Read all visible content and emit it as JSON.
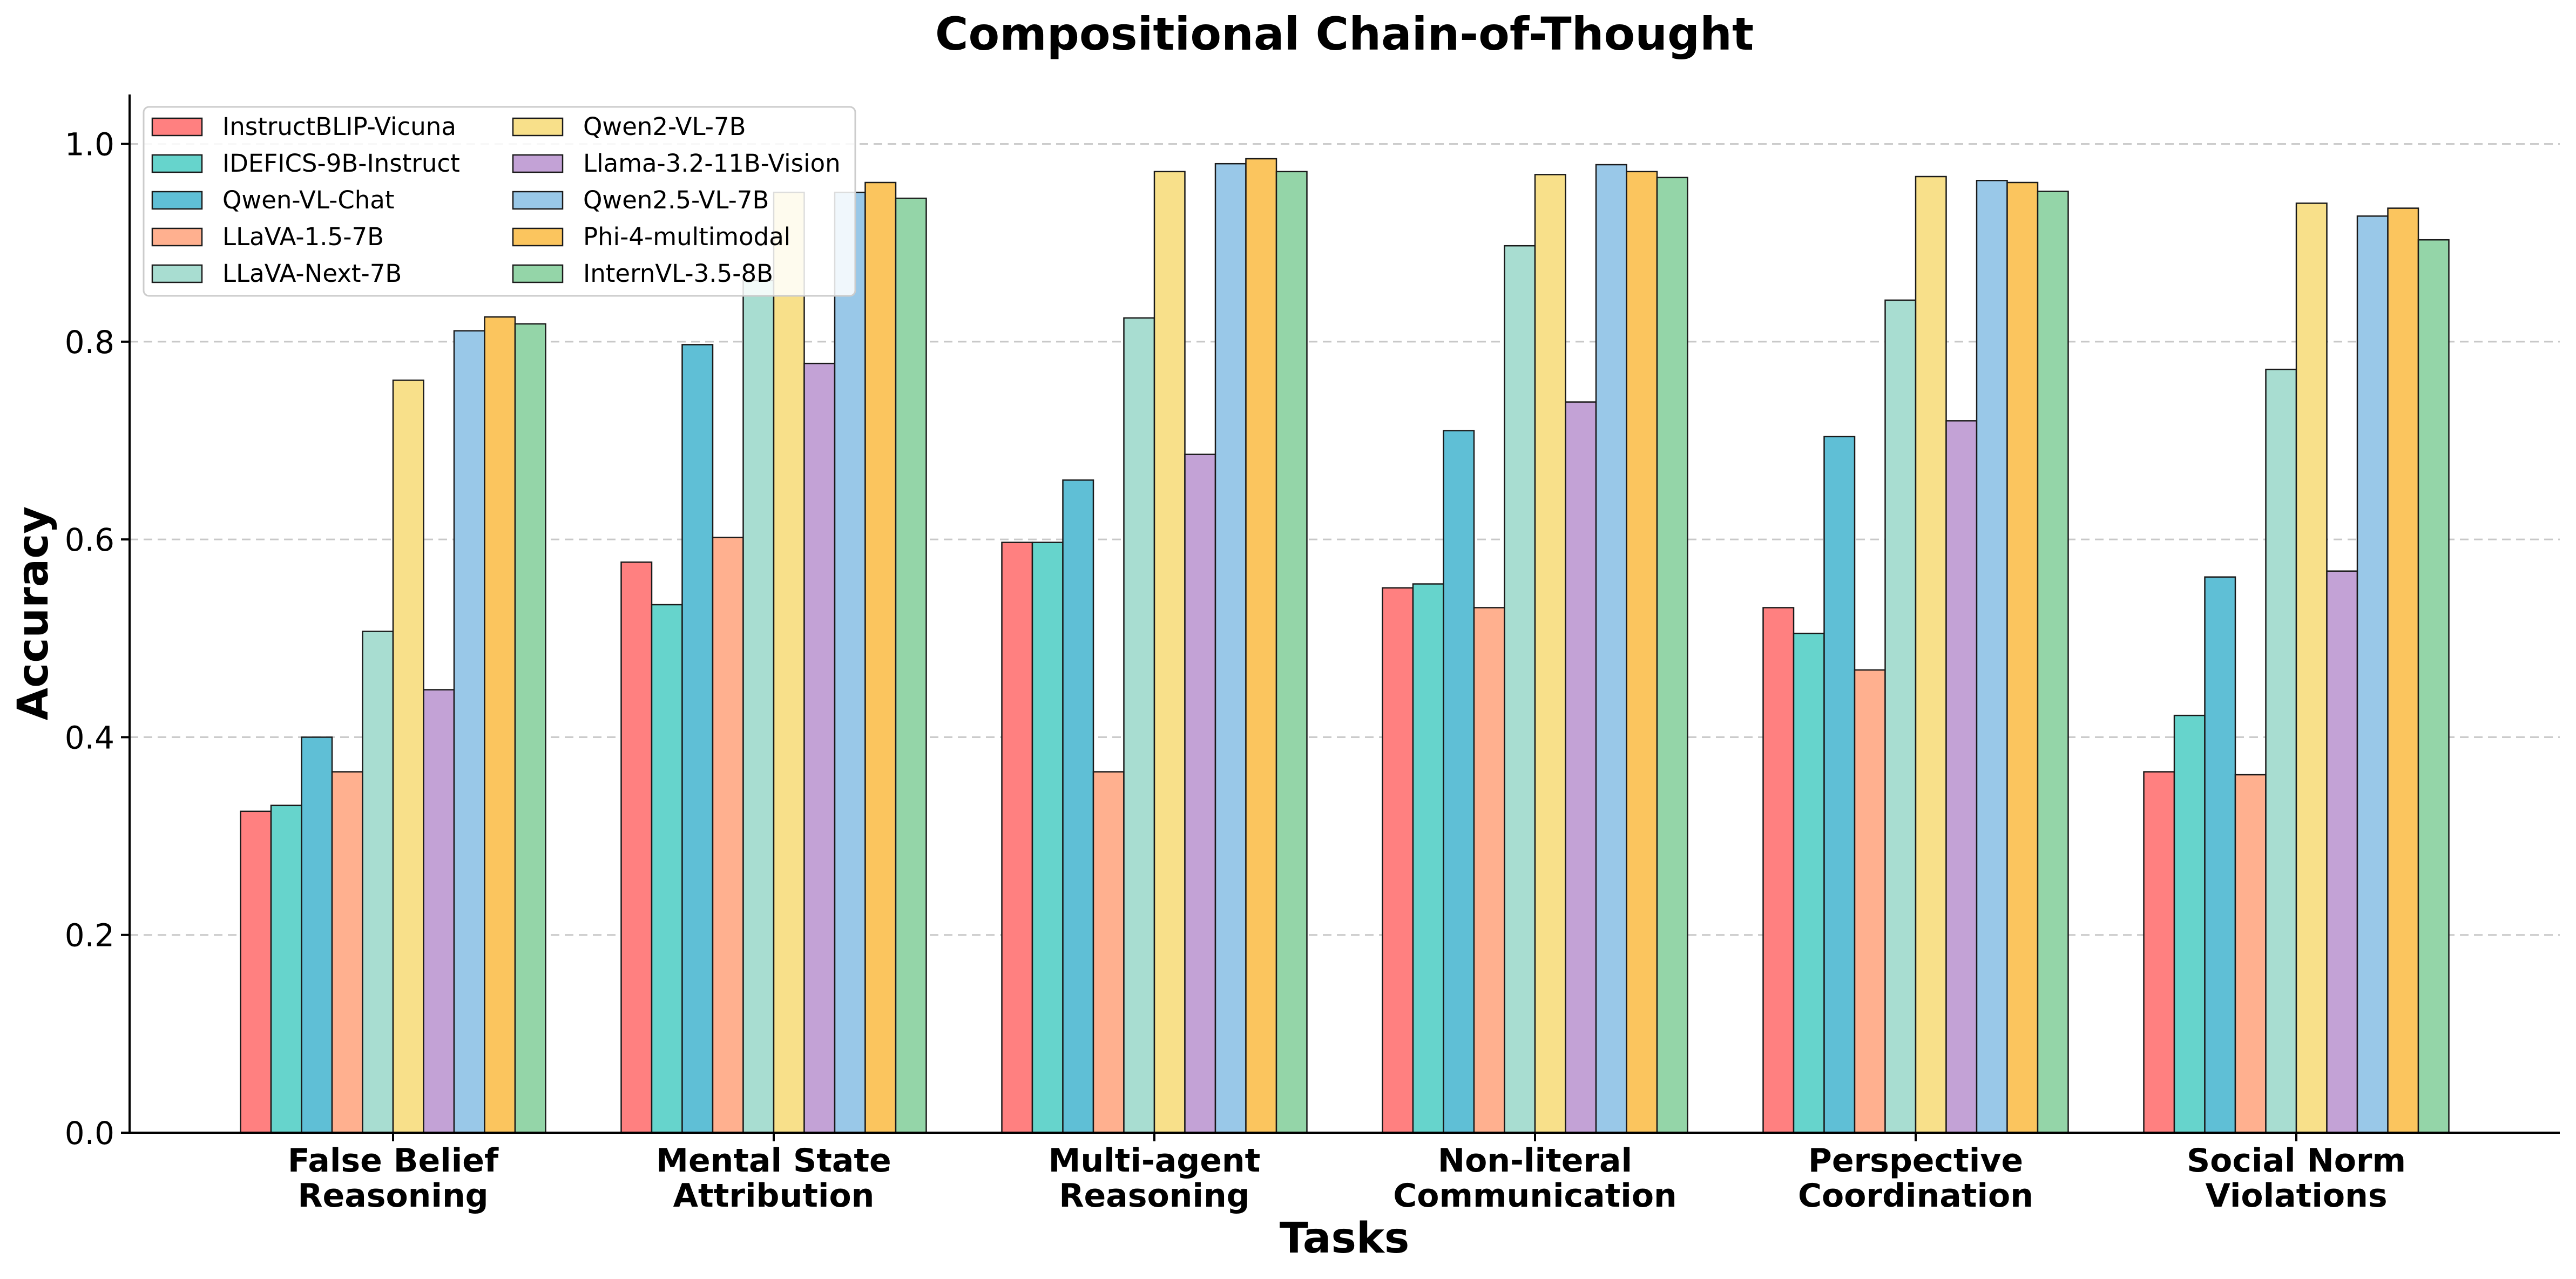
{
  "chart_data": {
    "type": "bar",
    "title": "Compositional Chain-of-Thought",
    "xlabel": "Tasks",
    "ylabel": "Accuracy",
    "ylim": [
      0,
      1.05
    ],
    "yticks": [
      0.0,
      0.2,
      0.4,
      0.6,
      0.8,
      1.0
    ],
    "ytick_labels": [
      "0.0",
      "0.2",
      "0.4",
      "0.6",
      "0.8",
      "1.0"
    ],
    "grid": true,
    "legend_position": "top-left",
    "legend_columns": 2,
    "categories": [
      [
        "False Belief",
        "Reasoning"
      ],
      [
        "Mental State",
        "Attribution"
      ],
      [
        "Multi-agent",
        "Reasoning"
      ],
      [
        "Non-literal",
        "Communication"
      ],
      [
        "Perspective",
        "Coordination"
      ],
      [
        "Social Norm",
        "Violations"
      ]
    ],
    "series": [
      {
        "name": "InstructBLIP-Vicuna",
        "color": "#FF8080",
        "values": [
          0.325,
          0.577,
          0.597,
          0.551,
          0.531,
          0.365
        ]
      },
      {
        "name": "IDEFICS-9B-Instruct",
        "color": "#66D4CC",
        "values": [
          0.331,
          0.534,
          0.597,
          0.555,
          0.505,
          0.422
        ]
      },
      {
        "name": "Qwen-VL-Chat",
        "color": "#5FBFD6",
        "values": [
          0.4,
          0.797,
          0.66,
          0.71,
          0.704,
          0.562
        ]
      },
      {
        "name": "LLaVA-1.5-7B",
        "color": "#FFB08F",
        "values": [
          0.365,
          0.602,
          0.365,
          0.531,
          0.468,
          0.362
        ]
      },
      {
        "name": "LLaVA-Next-7B",
        "color": "#A8DDD1",
        "values": [
          0.507,
          0.862,
          0.824,
          0.897,
          0.842,
          0.772
        ]
      },
      {
        "name": "Qwen2-VL-7B",
        "color": "#F8E08A",
        "values": [
          0.761,
          0.951,
          0.972,
          0.969,
          0.967,
          0.94
        ]
      },
      {
        "name": "Llama-3.2-11B-Vision",
        "color": "#C3A2D6",
        "values": [
          0.448,
          0.778,
          0.686,
          0.739,
          0.72,
          0.568
        ]
      },
      {
        "name": "Qwen2.5-VL-7B",
        "color": "#99C8E8",
        "values": [
          0.811,
          0.951,
          0.98,
          0.979,
          0.963,
          0.927
        ]
      },
      {
        "name": "Phi-4-multimodal",
        "color": "#FBC55E",
        "values": [
          0.825,
          0.961,
          0.985,
          0.972,
          0.961,
          0.935
        ]
      },
      {
        "name": "InternVL-3.5-8B",
        "color": "#94D5A8",
        "values": [
          0.818,
          0.945,
          0.972,
          0.966,
          0.952,
          0.903
        ]
      }
    ]
  }
}
